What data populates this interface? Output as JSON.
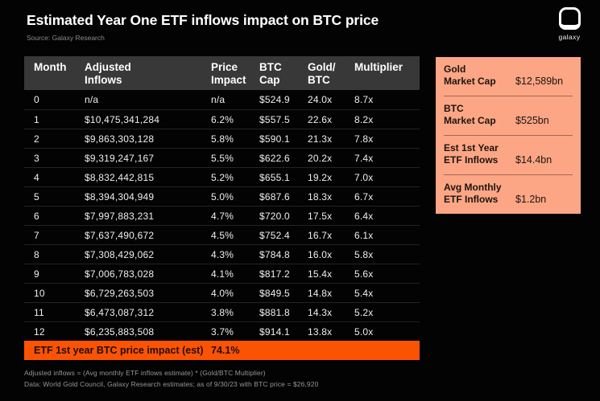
{
  "header": {
    "title": "Estimated Year One ETF inflows impact on BTC price",
    "source": "Source: Galaxy Research",
    "logo_wordmark": "galaxy"
  },
  "colors": {
    "background": "#030303",
    "table_header_gray": "#383838",
    "accent_orange": "#FB5304",
    "card_salmon": "#FCA685",
    "text_white": "#ffffff",
    "footnote_gray": "#969696"
  },
  "chart_data": {
    "type": "table",
    "title": "Estimated Year One ETF inflows impact on BTC price",
    "source": "Galaxy Research",
    "columns": [
      {
        "label": "Month",
        "line1": "Month",
        "line2": ""
      },
      {
        "label": "Adjusted Inflows",
        "line1": "Adjusted",
        "line2": "Inflows"
      },
      {
        "label": "Price Impact",
        "line1": "Price",
        "line2": "Impact"
      },
      {
        "label": "BTC Cap",
        "line1": "BTC",
        "line2": "Cap"
      },
      {
        "label": "Gold/BTC",
        "line1": "Gold/",
        "line2": "BTC"
      },
      {
        "label": "Multiplier",
        "line1": "Multiplier",
        "line2": ""
      }
    ],
    "rows": [
      [
        "0",
        "n/a",
        "n/a",
        "$524.9",
        "24.0x",
        "8.7x"
      ],
      [
        "1",
        "$10,475,341,284",
        "6.2%",
        "$557.5",
        "22.6x",
        "8.2x"
      ],
      [
        "2",
        "$9,863,303,128",
        "5.8%",
        "$590.1",
        "21.3x",
        "7.8x"
      ],
      [
        "3",
        "$9,319,247,167",
        "5.5%",
        "$622.6",
        "20.2x",
        "7.4x"
      ],
      [
        "4",
        "$8,832,442,815",
        "5.2%",
        "$655.1",
        "19.2x",
        "7.0x"
      ],
      [
        "5",
        "$8,394,304,949",
        "5.0%",
        "$687.6",
        "18.3x",
        "6.7x"
      ],
      [
        "6",
        "$7,997,883,231",
        "4.7%",
        "$720.0",
        "17.5x",
        "6.4x"
      ],
      [
        "7",
        "$7,637,490,672",
        "4.5%",
        "$752.4",
        "16.7x",
        "6.1x"
      ],
      [
        "8",
        "$7,308,429,062",
        "4.3%",
        "$784.8",
        "16.0x",
        "5.8x"
      ],
      [
        "9",
        "$7,006,783,028",
        "4.1%",
        "$817.2",
        "15.4x",
        "5.6x"
      ],
      [
        "10",
        "$6,729,263,503",
        "4.0%",
        "$849.5",
        "14.8x",
        "5.4x"
      ],
      [
        "11",
        "$6,473,087,312",
        "3.8%",
        "$881.8",
        "14.3x",
        "5.2x"
      ],
      [
        "12",
        "$6,235,883,508",
        "3.7%",
        "$914.1",
        "13.8x",
        "5.0x"
      ]
    ],
    "total_row": {
      "label": "ETF 1st year BTC price impact (est)",
      "value": "74.1%"
    },
    "side_stats": [
      {
        "label": "Gold Market Cap",
        "value": "$12,589bn"
      },
      {
        "label": "BTC Market Cap",
        "value": "$525bn"
      },
      {
        "label": "Est 1st Year ETF Inflows",
        "value": "$14.4bn"
      },
      {
        "label": "Avg Monthly ETF Inflows",
        "value": "$1.2bn"
      }
    ]
  },
  "sidebar": {
    "items": [
      {
        "label_line1": "Gold",
        "label_line2": "Market Cap",
        "value": "$12,589bn"
      },
      {
        "label_line1": "BTC",
        "label_line2": "Market Cap",
        "value": "$525bn"
      },
      {
        "label_line1": "Est 1st Year",
        "label_line2": "ETF Inflows",
        "value": "$14.4bn"
      },
      {
        "label_line1": "Avg Monthly",
        "label_line2": "ETF Inflows",
        "value": "$1.2bn"
      }
    ]
  },
  "footnotes": [
    "Adjusted inflows = (Avg monthly ETF inflows estimate) * (Gold/BTC Multiplier)",
    "Data: World Gold Council, Galaxy Research estimates; as of 9/30/23 with BTC price = $26,920"
  ]
}
